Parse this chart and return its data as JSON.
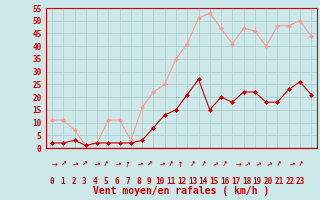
{
  "xlabel": "Vent moyen/en rafales ( km/h )",
  "background_color": "#cce8e8",
  "grid_color": "#aacccc",
  "line_color_avg": "#cc0000",
  "line_color_gust": "#ff9999",
  "marker_color_avg": "#cc0000",
  "marker_color_gust": "#ff9999",
  "x": [
    0,
    1,
    2,
    3,
    4,
    5,
    6,
    7,
    8,
    9,
    10,
    11,
    12,
    13,
    14,
    15,
    16,
    17,
    18,
    19,
    20,
    21,
    22,
    23
  ],
  "avg": [
    2,
    2,
    3,
    1,
    2,
    2,
    2,
    2,
    3,
    8,
    13,
    15,
    21,
    27,
    15,
    20,
    18,
    22,
    22,
    18,
    18,
    23,
    26,
    21
  ],
  "gust": [
    11,
    11,
    7,
    1,
    2,
    11,
    11,
    3,
    16,
    22,
    25,
    35,
    41,
    51,
    53,
    47,
    41,
    47,
    46,
    40,
    48,
    48,
    50,
    44
  ],
  "ylim": [
    0,
    55
  ],
  "yticks": [
    0,
    5,
    10,
    15,
    20,
    25,
    30,
    35,
    40,
    45,
    50,
    55
  ],
  "xticks": [
    0,
    1,
    2,
    3,
    4,
    5,
    6,
    7,
    8,
    9,
    10,
    11,
    12,
    13,
    14,
    15,
    16,
    17,
    18,
    19,
    20,
    21,
    22,
    23
  ],
  "tick_fontsize": 5.5,
  "xlabel_fontsize": 7
}
